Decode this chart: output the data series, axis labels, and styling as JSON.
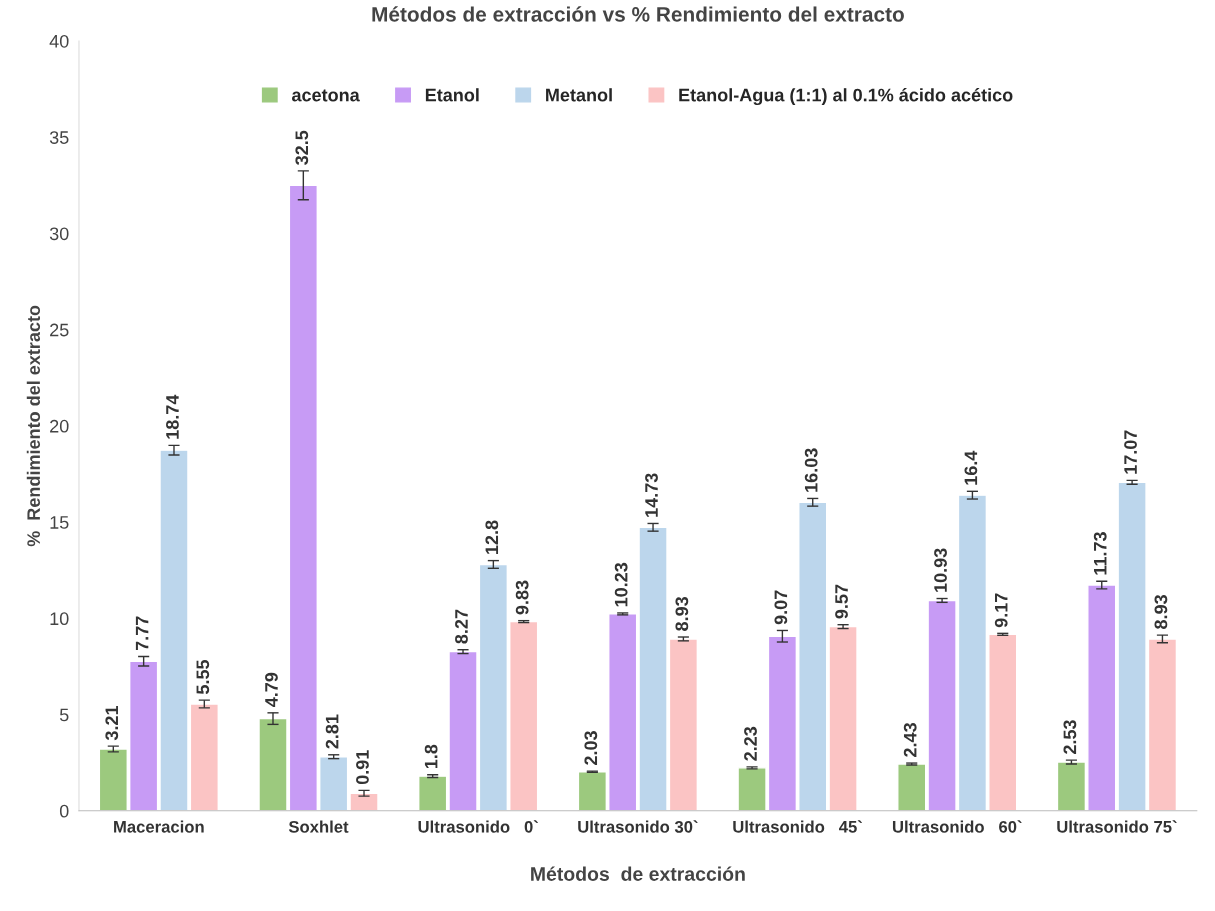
{
  "chart_data": {
    "type": "bar",
    "title": "Métodos de extracción vs % Rendimiento del extracto",
    "xlabel": "Métodos  de extracción",
    "ylabel": "%  Rendimiento del extracto",
    "categories": [
      "Maceracion",
      "Soxhlet",
      "Ultrasonido   0`",
      "Ultrasonido 30`",
      "Ultrasonido   45`",
      "Ultrasonido   60`",
      "Ultrasonido 75`"
    ],
    "series": [
      {
        "name": "acetona",
        "color": "#9cc97e",
        "values": [
          3.21,
          4.79,
          1.8,
          2.03,
          2.23,
          2.43,
          2.53
        ],
        "errors": [
          0.15,
          0.3,
          0.07,
          0.03,
          0.05,
          0.05,
          0.1
        ]
      },
      {
        "name": "Etanol",
        "color": "#c79bf5",
        "values": [
          7.77,
          32.5,
          8.27,
          10.23,
          9.07,
          10.93,
          11.73
        ],
        "errors": [
          0.25,
          0.75,
          0.1,
          0.05,
          0.3,
          0.1,
          0.2
        ]
      },
      {
        "name": "Metanol",
        "color": "#bcd6ec",
        "values": [
          18.74,
          2.81,
          12.8,
          14.73,
          16.03,
          16.4,
          17.07
        ],
        "errors": [
          0.25,
          0.1,
          0.2,
          0.2,
          0.2,
          0.2,
          0.1
        ]
      },
      {
        "name": "Etanol-Agua (1:1) al 0.1% ácido acético",
        "color": "#fbc4c4",
        "values": [
          5.55,
          0.91,
          9.83,
          8.93,
          9.57,
          9.17,
          8.93
        ],
        "errors": [
          0.2,
          0.15,
          0.05,
          0.1,
          0.1,
          0.05,
          0.2
        ]
      }
    ],
    "ylim": [
      0,
      40
    ],
    "yticks": [
      0,
      5,
      10,
      15,
      20,
      25,
      30,
      35,
      40
    ],
    "data_labels": true,
    "grid": false,
    "legend": "top"
  }
}
